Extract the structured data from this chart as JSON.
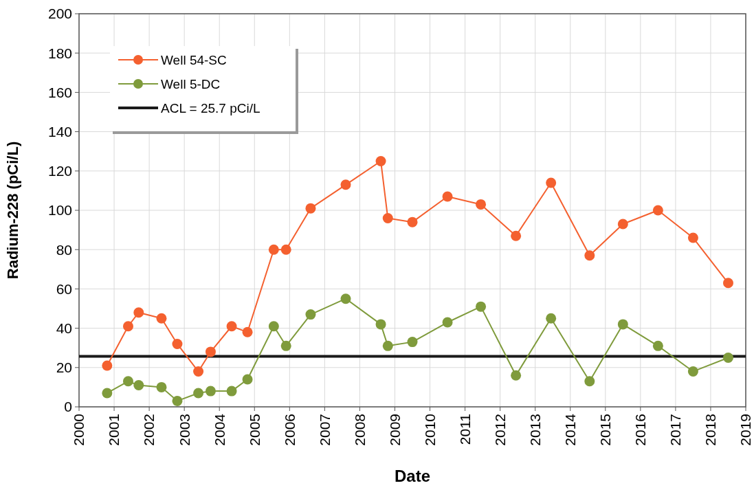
{
  "chart_data": {
    "type": "line",
    "xlabel": "Date",
    "ylabel": "Radium-228 (pCi/L)",
    "xlim": [
      2000,
      2019
    ],
    "xticks": [
      2000,
      2001,
      2002,
      2003,
      2004,
      2005,
      2006,
      2007,
      2008,
      2009,
      2010,
      2011,
      2012,
      2013,
      2014,
      2015,
      2016,
      2017,
      2018,
      2019
    ],
    "ylim": [
      0,
      200
    ],
    "yticks": [
      0,
      20,
      40,
      60,
      80,
      100,
      120,
      140,
      160,
      180,
      200
    ],
    "grid": true,
    "legend": "top left",
    "marker": "circle",
    "line_style": "solid",
    "series": [
      {
        "name": "Well 54-SC",
        "color": "#f4602f",
        "x": [
          2000.8,
          2001.4,
          2001.7,
          2002.35,
          2002.8,
          2003.4,
          2003.75,
          2004.35,
          2004.8,
          2005.55,
          2005.9,
          2006.6,
          2007.6,
          2008.6,
          2008.8,
          2009.5,
          2010.5,
          2011.45,
          2012.45,
          2013.45,
          2014.55,
          2015.5,
          2016.5,
          2017.5,
          2018.5
        ],
        "values": [
          21,
          41,
          48,
          45,
          32,
          18,
          28,
          41,
          38,
          80,
          80,
          101,
          113,
          125,
          96,
          94,
          107,
          103,
          87,
          114,
          77,
          93,
          100,
          86,
          63
        ]
      },
      {
        "name": "Well 5-DC",
        "color": "#7f9b3c",
        "x": [
          2000.8,
          2001.4,
          2001.7,
          2002.35,
          2002.8,
          2003.4,
          2003.75,
          2004.35,
          2004.8,
          2005.55,
          2005.9,
          2006.6,
          2007.6,
          2008.6,
          2008.8,
          2009.5,
          2010.5,
          2011.45,
          2012.45,
          2013.45,
          2014.55,
          2015.5,
          2016.5,
          2017.5,
          2018.5
        ],
        "values": [
          7,
          13,
          11,
          10,
          3,
          7,
          8,
          8,
          14,
          41,
          31,
          47,
          55,
          42,
          31,
          33,
          43,
          51,
          16,
          45,
          13,
          42,
          31,
          18,
          25
        ]
      }
    ],
    "ref_lines": [
      {
        "axis": "y",
        "value": 25.7,
        "label": "ACL = 25.7 pCi/L",
        "color": "#1a1a1a"
      }
    ]
  }
}
